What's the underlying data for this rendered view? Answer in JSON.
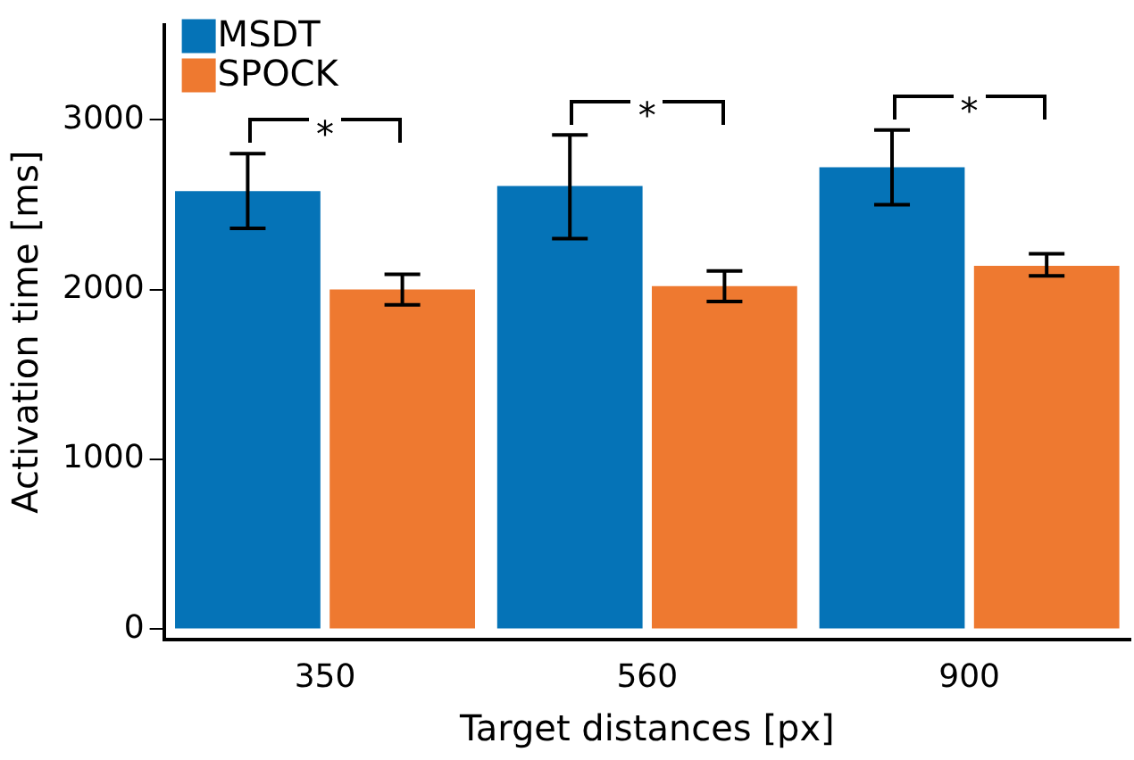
{
  "chart_data": {
    "type": "bar",
    "xlabel": "Target distances [px]",
    "ylabel": "Activation time [ms]",
    "categories": [
      "350",
      "560",
      "900"
    ],
    "series": [
      {
        "name": "MSDT",
        "color": "#0573b7",
        "values": [
          2580,
          2610,
          2720
        ],
        "errors": [
          [
            2360,
            2800
          ],
          [
            2300,
            2910
          ],
          [
            2500,
            2940
          ]
        ]
      },
      {
        "name": "SPOCK",
        "color": "#ee7930",
        "values": [
          2000,
          2020,
          2140
        ],
        "errors": [
          [
            1910,
            2090
          ],
          [
            1930,
            2110
          ],
          [
            2080,
            2210
          ]
        ]
      }
    ],
    "ylim": [
      -60,
      3560
    ],
    "yticks": [
      0,
      1000,
      2000,
      3000
    ],
    "grid": false,
    "legend": "top left",
    "annotations": [
      "*",
      "*",
      "*"
    ]
  }
}
